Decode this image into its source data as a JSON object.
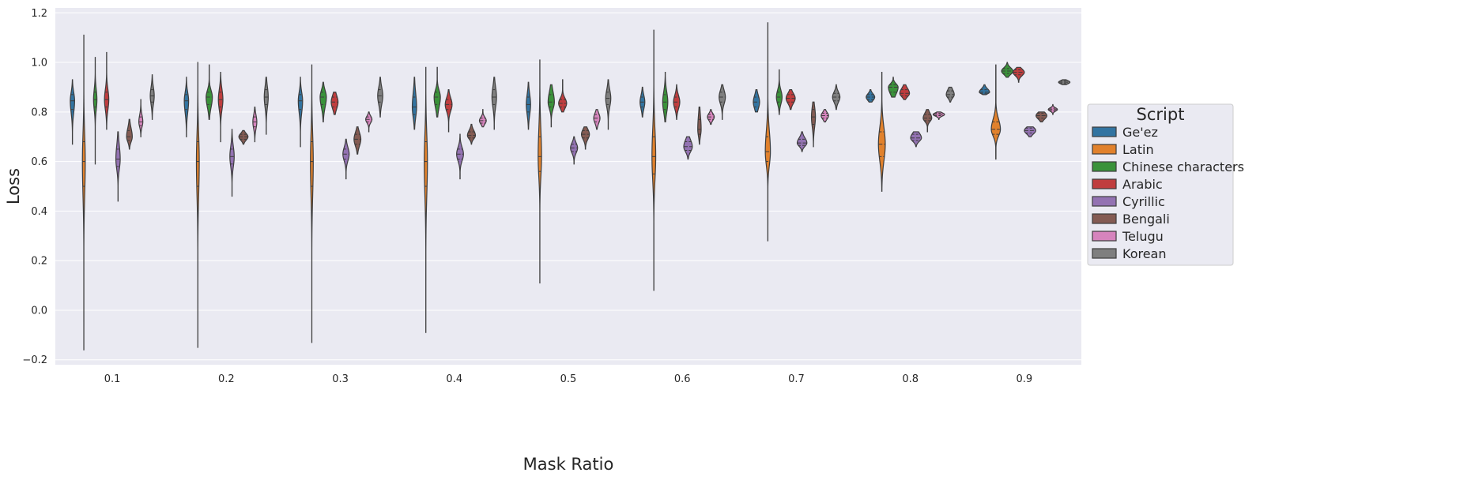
{
  "chart_data": {
    "type": "violin",
    "xlabel": "Mask Ratio",
    "ylabel": "Loss",
    "categories": [
      "0.1",
      "0.2",
      "0.3",
      "0.4",
      "0.5",
      "0.6",
      "0.7",
      "0.8",
      "0.9"
    ],
    "ylim": [
      -0.22,
      1.22
    ],
    "yticks": [
      "−0.2",
      "0.0",
      "0.2",
      "0.4",
      "0.6",
      "0.8",
      "1.0",
      "1.2"
    ],
    "ytick_values": [
      -0.2,
      0.0,
      0.2,
      0.4,
      0.6,
      0.8,
      1.0,
      1.2
    ],
    "grid": true,
    "legend": {
      "title": "Script",
      "placement": "center-right outside"
    },
    "series": [
      {
        "name": "Ge'ez",
        "color": "#3274a1",
        "distributions": [
          {
            "min": 0.67,
            "q1": 0.81,
            "median": 0.845,
            "q3": 0.87,
            "max": 0.93,
            "width": 0.38
          },
          {
            "min": 0.7,
            "q1": 0.81,
            "median": 0.845,
            "q3": 0.87,
            "max": 0.94,
            "width": 0.38
          },
          {
            "min": 0.66,
            "q1": 0.81,
            "median": 0.845,
            "q3": 0.87,
            "max": 0.94,
            "width": 0.38
          },
          {
            "min": 0.73,
            "q1": 0.79,
            "median": 0.82,
            "q3": 0.86,
            "max": 0.94,
            "width": 0.38
          },
          {
            "min": 0.73,
            "q1": 0.8,
            "median": 0.83,
            "q3": 0.86,
            "max": 0.92,
            "width": 0.38
          },
          {
            "min": 0.78,
            "q1": 0.82,
            "median": 0.84,
            "q3": 0.86,
            "max": 0.9,
            "width": 0.42
          },
          {
            "min": 0.8,
            "q1": 0.82,
            "median": 0.84,
            "q3": 0.86,
            "max": 0.89,
            "width": 0.55
          },
          {
            "min": 0.84,
            "q1": 0.85,
            "median": 0.86,
            "q3": 0.87,
            "max": 0.89,
            "width": 0.75
          },
          {
            "min": 0.87,
            "q1": 0.875,
            "median": 0.88,
            "q3": 0.89,
            "max": 0.91,
            "width": 0.9
          }
        ]
      },
      {
        "name": "Latin",
        "color": "#e1812c",
        "distributions": [
          {
            "min": -0.16,
            "q1": 0.5,
            "median": 0.6,
            "q3": 0.68,
            "max": 1.11,
            "width": 0.25
          },
          {
            "min": -0.15,
            "q1": 0.5,
            "median": 0.6,
            "q3": 0.68,
            "max": 1.0,
            "width": 0.25
          },
          {
            "min": -0.13,
            "q1": 0.5,
            "median": 0.6,
            "q3": 0.68,
            "max": 0.99,
            "width": 0.25
          },
          {
            "min": -0.09,
            "q1": 0.5,
            "median": 0.6,
            "q3": 0.68,
            "max": 0.98,
            "width": 0.28
          },
          {
            "min": 0.11,
            "q1": 0.56,
            "median": 0.62,
            "q3": 0.7,
            "max": 1.01,
            "width": 0.3
          },
          {
            "min": 0.08,
            "q1": 0.55,
            "median": 0.62,
            "q3": 0.7,
            "max": 1.13,
            "width": 0.33
          },
          {
            "min": 0.28,
            "q1": 0.6,
            "median": 0.64,
            "q3": 0.7,
            "max": 1.16,
            "width": 0.45
          },
          {
            "min": 0.48,
            "q1": 0.62,
            "median": 0.67,
            "q3": 0.72,
            "max": 0.96,
            "width": 0.6
          },
          {
            "min": 0.61,
            "q1": 0.71,
            "median": 0.73,
            "q3": 0.76,
            "max": 0.99,
            "width": 0.8
          }
        ]
      },
      {
        "name": "Chinese characters",
        "color": "#3a923a",
        "distributions": [
          {
            "min": 0.59,
            "q1": 0.82,
            "median": 0.85,
            "q3": 0.88,
            "max": 1.02,
            "width": 0.3
          },
          {
            "min": 0.77,
            "q1": 0.83,
            "median": 0.86,
            "q3": 0.88,
            "max": 0.99,
            "width": 0.55
          },
          {
            "min": 0.76,
            "q1": 0.83,
            "median": 0.86,
            "q3": 0.88,
            "max": 0.92,
            "width": 0.55
          },
          {
            "min": 0.78,
            "q1": 0.83,
            "median": 0.86,
            "q3": 0.88,
            "max": 0.98,
            "width": 0.55
          },
          {
            "min": 0.74,
            "q1": 0.82,
            "median": 0.84,
            "q3": 0.87,
            "max": 0.91,
            "width": 0.55
          },
          {
            "min": 0.76,
            "q1": 0.81,
            "median": 0.84,
            "q3": 0.87,
            "max": 0.96,
            "width": 0.45
          },
          {
            "min": 0.79,
            "q1": 0.84,
            "median": 0.86,
            "q3": 0.88,
            "max": 0.97,
            "width": 0.5
          },
          {
            "min": 0.86,
            "q1": 0.88,
            "median": 0.9,
            "q3": 0.91,
            "max": 0.94,
            "width": 0.85
          },
          {
            "min": 0.94,
            "q1": 0.955,
            "median": 0.965,
            "q3": 0.975,
            "max": 1.0,
            "width": 1.0
          }
        ]
      },
      {
        "name": "Arabic",
        "color": "#c03d3e",
        "distributions": [
          {
            "min": 0.73,
            "q1": 0.82,
            "median": 0.85,
            "q3": 0.88,
            "max": 1.04,
            "width": 0.38
          },
          {
            "min": 0.68,
            "q1": 0.82,
            "median": 0.85,
            "q3": 0.88,
            "max": 0.96,
            "width": 0.4
          },
          {
            "min": 0.79,
            "q1": 0.82,
            "median": 0.84,
            "q3": 0.86,
            "max": 0.88,
            "width": 0.6
          },
          {
            "min": 0.72,
            "q1": 0.81,
            "median": 0.83,
            "q3": 0.85,
            "max": 0.89,
            "width": 0.6
          },
          {
            "min": 0.8,
            "q1": 0.82,
            "median": 0.835,
            "q3": 0.85,
            "max": 0.93,
            "width": 0.7
          },
          {
            "min": 0.77,
            "q1": 0.82,
            "median": 0.84,
            "q3": 0.86,
            "max": 0.91,
            "width": 0.55
          },
          {
            "min": 0.81,
            "q1": 0.84,
            "median": 0.855,
            "q3": 0.87,
            "max": 0.89,
            "width": 0.8
          },
          {
            "min": 0.85,
            "q1": 0.865,
            "median": 0.875,
            "q3": 0.89,
            "max": 0.91,
            "width": 0.85
          },
          {
            "min": 0.92,
            "q1": 0.95,
            "median": 0.96,
            "q3": 0.97,
            "max": 0.98,
            "width": 1.0
          }
        ]
      },
      {
        "name": "Cyrillic",
        "color": "#9372b2",
        "distributions": [
          {
            "min": 0.44,
            "q1": 0.58,
            "median": 0.61,
            "q3": 0.65,
            "max": 0.72,
            "width": 0.38
          },
          {
            "min": 0.46,
            "q1": 0.59,
            "median": 0.62,
            "q3": 0.65,
            "max": 0.73,
            "width": 0.38
          },
          {
            "min": 0.53,
            "q1": 0.61,
            "median": 0.63,
            "q3": 0.65,
            "max": 0.69,
            "width": 0.55
          },
          {
            "min": 0.53,
            "q1": 0.61,
            "median": 0.63,
            "q3": 0.65,
            "max": 0.71,
            "width": 0.6
          },
          {
            "min": 0.59,
            "q1": 0.64,
            "median": 0.655,
            "q3": 0.67,
            "max": 0.7,
            "width": 0.62
          },
          {
            "min": 0.61,
            "q1": 0.645,
            "median": 0.66,
            "q3": 0.68,
            "max": 0.7,
            "width": 0.75
          },
          {
            "min": 0.64,
            "q1": 0.665,
            "median": 0.675,
            "q3": 0.69,
            "max": 0.72,
            "width": 0.85
          },
          {
            "min": 0.66,
            "q1": 0.685,
            "median": 0.695,
            "q3": 0.71,
            "max": 0.72,
            "width": 0.95
          },
          {
            "min": 0.7,
            "q1": 0.715,
            "median": 0.725,
            "q3": 0.735,
            "max": 0.74,
            "width": 1.0
          }
        ]
      },
      {
        "name": "Bengali",
        "color": "#845b53",
        "distributions": [
          {
            "min": 0.65,
            "q1": 0.685,
            "median": 0.7,
            "q3": 0.725,
            "max": 0.77,
            "width": 0.5
          },
          {
            "min": 0.67,
            "q1": 0.69,
            "median": 0.7,
            "q3": 0.71,
            "max": 0.725,
            "width": 0.8
          },
          {
            "min": 0.63,
            "q1": 0.67,
            "median": 0.69,
            "q3": 0.71,
            "max": 0.74,
            "width": 0.6
          },
          {
            "min": 0.67,
            "q1": 0.695,
            "median": 0.705,
            "q3": 0.72,
            "max": 0.75,
            "width": 0.7
          },
          {
            "min": 0.65,
            "q1": 0.695,
            "median": 0.71,
            "q3": 0.725,
            "max": 0.74,
            "width": 0.7
          },
          {
            "min": 0.67,
            "q1": 0.71,
            "median": 0.73,
            "q3": 0.77,
            "max": 0.82,
            "width": 0.3
          },
          {
            "min": 0.66,
            "q1": 0.75,
            "median": 0.78,
            "q3": 0.81,
            "max": 0.84,
            "width": 0.35
          },
          {
            "min": 0.72,
            "q1": 0.765,
            "median": 0.775,
            "q3": 0.79,
            "max": 0.81,
            "width": 0.75
          },
          {
            "min": 0.76,
            "q1": 0.775,
            "median": 0.785,
            "q3": 0.795,
            "max": 0.8,
            "width": 0.95
          }
        ]
      },
      {
        "name": "Telugu",
        "color": "#d684bd",
        "distributions": [
          {
            "min": 0.7,
            "q1": 0.745,
            "median": 0.76,
            "q3": 0.78,
            "max": 0.85,
            "width": 0.35
          },
          {
            "min": 0.68,
            "q1": 0.74,
            "median": 0.76,
            "q3": 0.78,
            "max": 0.82,
            "width": 0.35
          },
          {
            "min": 0.72,
            "q1": 0.76,
            "median": 0.77,
            "q3": 0.78,
            "max": 0.8,
            "width": 0.55
          },
          {
            "min": 0.74,
            "q1": 0.755,
            "median": 0.765,
            "q3": 0.775,
            "max": 0.81,
            "width": 0.6
          },
          {
            "min": 0.73,
            "q1": 0.76,
            "median": 0.775,
            "q3": 0.79,
            "max": 0.81,
            "width": 0.55
          },
          {
            "min": 0.75,
            "q1": 0.77,
            "median": 0.78,
            "q3": 0.79,
            "max": 0.81,
            "width": 0.6
          },
          {
            "min": 0.76,
            "q1": 0.775,
            "median": 0.785,
            "q3": 0.795,
            "max": 0.81,
            "width": 0.65
          },
          {
            "min": 0.77,
            "q1": 0.785,
            "median": 0.79,
            "q3": 0.795,
            "max": 0.8,
            "width": 1.0
          },
          {
            "min": 0.79,
            "q1": 0.805,
            "median": 0.81,
            "q3": 0.815,
            "max": 0.83,
            "width": 0.8
          }
        ]
      },
      {
        "name": "Korean",
        "color": "#7f7f7f",
        "distributions": [
          {
            "min": 0.77,
            "q1": 0.84,
            "median": 0.865,
            "q3": 0.89,
            "max": 0.95,
            "width": 0.35
          },
          {
            "min": 0.71,
            "q1": 0.83,
            "median": 0.86,
            "q3": 0.89,
            "max": 0.94,
            "width": 0.35
          },
          {
            "min": 0.78,
            "q1": 0.84,
            "median": 0.865,
            "q3": 0.89,
            "max": 0.94,
            "width": 0.45
          },
          {
            "min": 0.73,
            "q1": 0.83,
            "median": 0.86,
            "q3": 0.89,
            "max": 0.94,
            "width": 0.4
          },
          {
            "min": 0.73,
            "q1": 0.83,
            "median": 0.855,
            "q3": 0.88,
            "max": 0.93,
            "width": 0.45
          },
          {
            "min": 0.77,
            "q1": 0.84,
            "median": 0.86,
            "q3": 0.88,
            "max": 0.91,
            "width": 0.55
          },
          {
            "min": 0.81,
            "q1": 0.845,
            "median": 0.86,
            "q3": 0.875,
            "max": 0.91,
            "width": 0.65
          },
          {
            "min": 0.84,
            "q1": 0.86,
            "median": 0.87,
            "q3": 0.885,
            "max": 0.9,
            "width": 0.7
          },
          {
            "min": 0.91,
            "q1": 0.915,
            "median": 0.92,
            "q3": 0.925,
            "max": 0.93,
            "width": 1.0
          }
        ]
      }
    ]
  }
}
